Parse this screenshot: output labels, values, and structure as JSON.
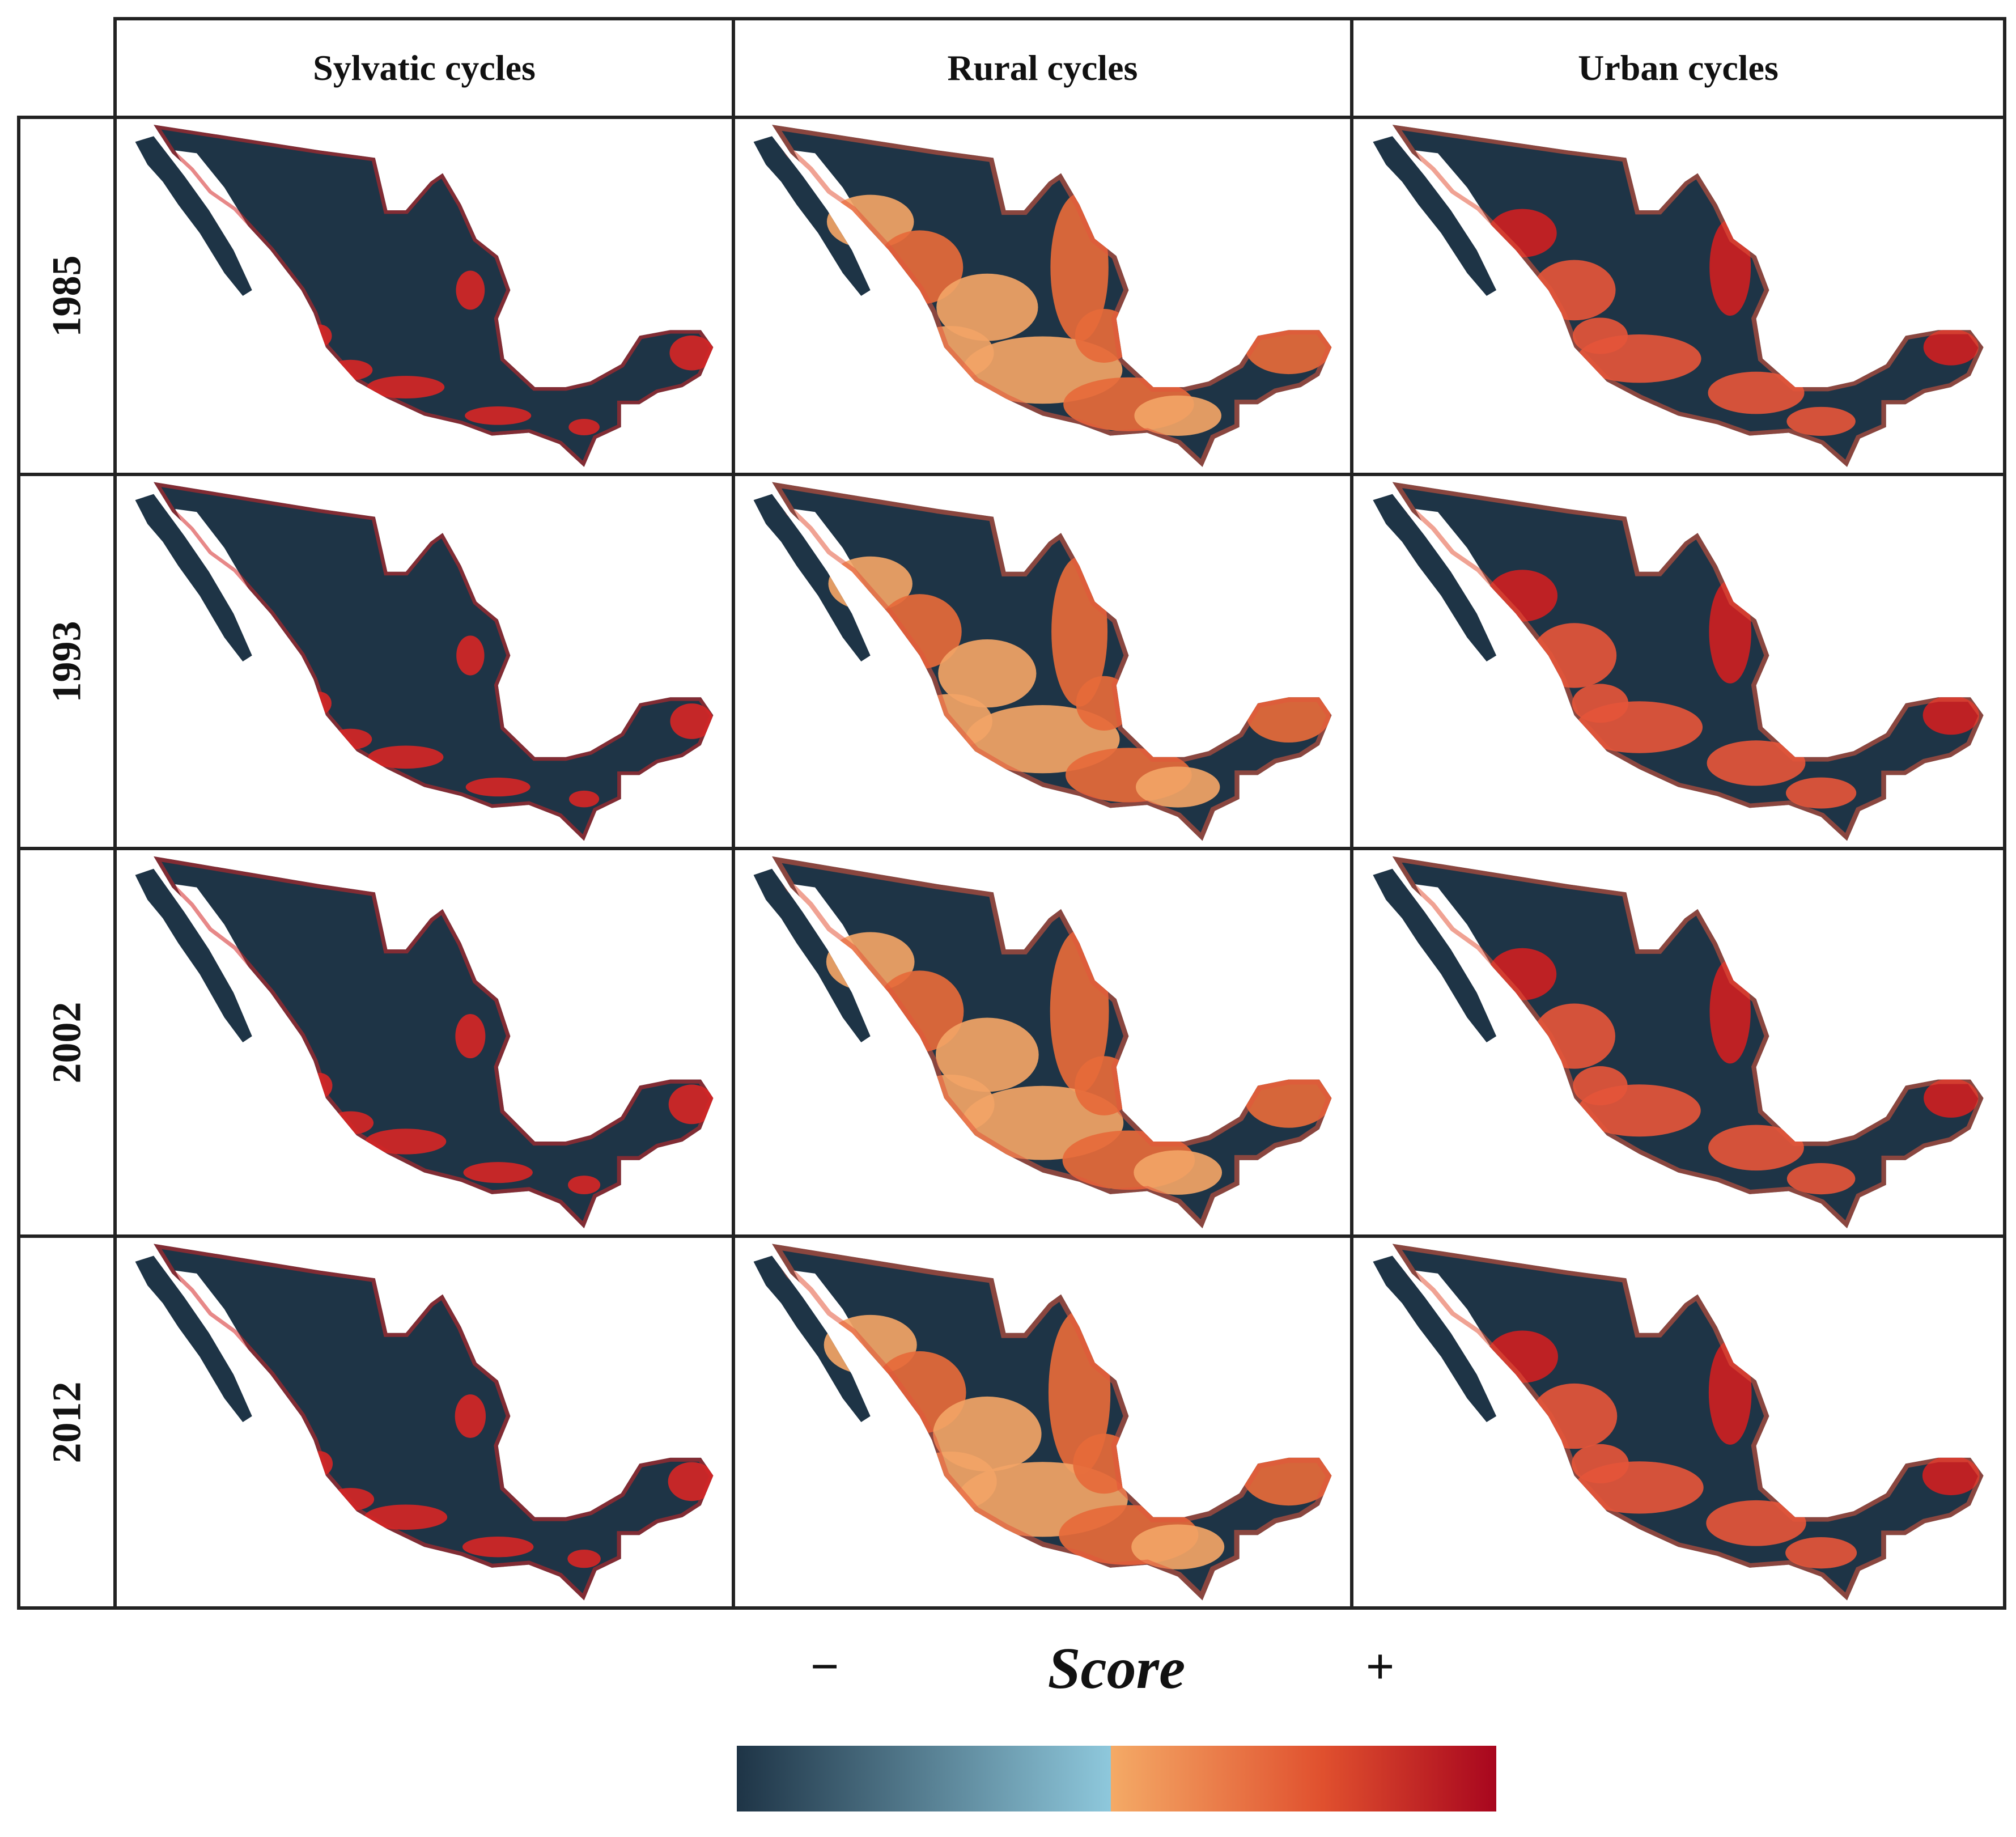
{
  "columns": [
    "Sylvatic cycles",
    "Rural cycles",
    "Urban cycles"
  ],
  "rows": [
    "1985",
    "1993",
    "2002",
    "2012"
  ],
  "legend": {
    "title": "Score",
    "low_label": "−",
    "high_label": "+",
    "colors": [
      "#1e3446",
      "#8ec8dc",
      "#f4aa66",
      "#e0502e",
      "#a8061e"
    ]
  },
  "map_colors": {
    "land": "#1e3446",
    "sylvatic_hotspot": "#d42626",
    "rural_light": "#f2a466",
    "rural_mid": "#e66a3a",
    "urban_mid": "#e4553a",
    "urban_hot": "#cc1f22"
  },
  "map_shading": {
    "note_levels": "relative share of high-score area per cell, 0-1",
    "Sylvatic cycles": [
      0.25,
      0.22,
      0.3,
      0.33
    ],
    "Rural cycles": [
      0.6,
      0.55,
      0.62,
      0.7
    ],
    "Urban cycles": [
      0.45,
      0.48,
      0.44,
      0.5
    ]
  }
}
